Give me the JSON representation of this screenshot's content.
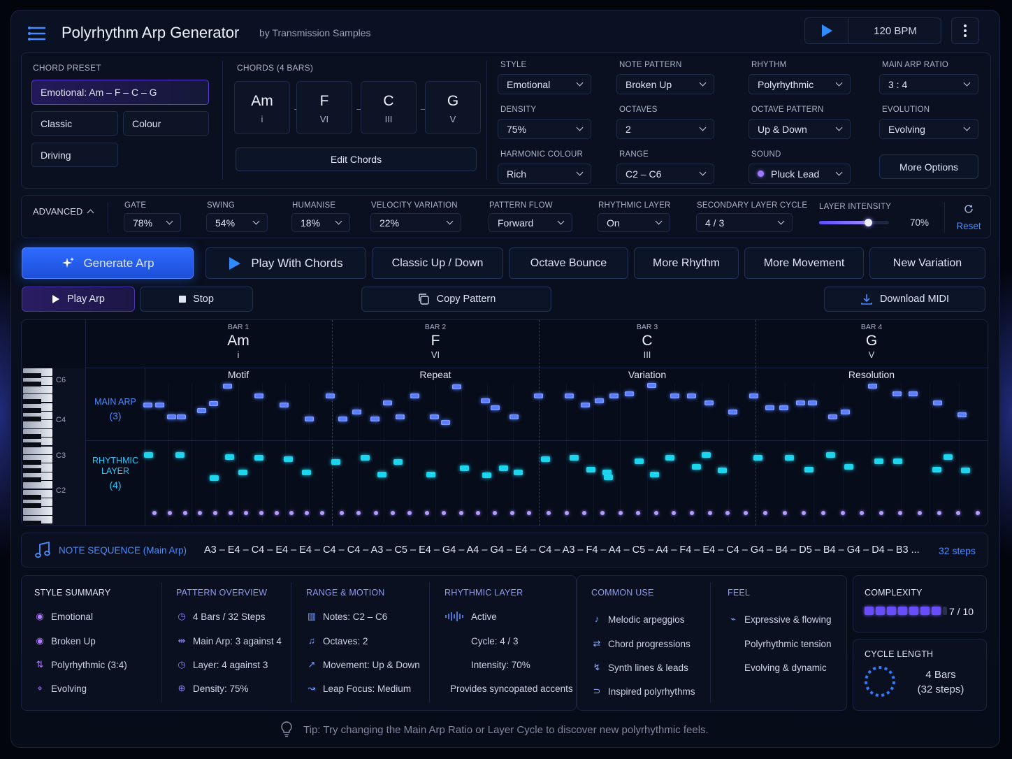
{
  "header": {
    "title": "Polyrhythm Arp Generator",
    "subtitle": "by Transmission Samples",
    "bpm": "120 BPM"
  },
  "chord_preset": {
    "label": "CHORD PRESET",
    "selected": "Emotional: Am – F – C – G",
    "options": [
      "Classic",
      "Colour",
      "Driving"
    ]
  },
  "chords": {
    "label": "CHORDS",
    "label_sub": "(4 BARS)",
    "items": [
      {
        "name": "Am",
        "degree": "i"
      },
      {
        "name": "F",
        "degree": "VI"
      },
      {
        "name": "C",
        "degree": "III"
      },
      {
        "name": "G",
        "degree": "V"
      }
    ],
    "edit_label": "Edit Chords"
  },
  "params": [
    {
      "label": "STYLE",
      "value": "Emotional"
    },
    {
      "label": "NOTE PATTERN",
      "value": "Broken Up"
    },
    {
      "label": "RHYTHM",
      "value": "Polyrhythmic"
    },
    {
      "label": "MAIN ARP RATIO",
      "value": "3 : 4"
    },
    {
      "label": "DENSITY",
      "value": "75%"
    },
    {
      "label": "OCTAVES",
      "value": "2"
    },
    {
      "label": "OCTAVE PATTERN",
      "value": "Up & Down"
    },
    {
      "label": "EVOLUTION",
      "value": "Evolving"
    },
    {
      "label": "HARMONIC COLOUR",
      "value": "Rich"
    },
    {
      "label": "RANGE",
      "value": "C2 – C6"
    },
    {
      "label": "SOUND",
      "value": "Pluck Lead"
    }
  ],
  "more_options": "More Options",
  "advanced": {
    "label": "ADVANCED",
    "controls": [
      {
        "label": "GATE",
        "value": "78%"
      },
      {
        "label": "SWING",
        "value": "54%"
      },
      {
        "label": "HUMANISE",
        "value": "18%"
      },
      {
        "label": "VELOCITY VARIATION",
        "value": "22%"
      },
      {
        "label": "PATTERN FLOW",
        "value": "Forward"
      },
      {
        "label": "RHYTHMIC LAYER",
        "value": "On"
      },
      {
        "label": "SECONDARY LAYER CYCLE",
        "value": "4 / 3"
      }
    ],
    "intensity_label": "LAYER INTENSITY",
    "intensity_value": "70%",
    "intensity_level": 0.7,
    "reset": "Reset"
  },
  "actions": {
    "generate": "Generate Arp",
    "play_chords": "Play With Chords",
    "presets": [
      "Classic Up / Down",
      "Octave Bounce",
      "More Rhythm",
      "More Movement",
      "New Variation"
    ]
  },
  "transport": {
    "play": "Play Arp",
    "stop": "Stop",
    "copy": "Copy Pattern",
    "download": "Download MIDI"
  },
  "roll": {
    "bars": [
      {
        "bar": "BAR 1",
        "chord": "Am",
        "degree": "i",
        "section": "Motif"
      },
      {
        "bar": "BAR 2",
        "chord": "F",
        "degree": "VI",
        "section": "Repeat"
      },
      {
        "bar": "BAR 3",
        "chord": "C",
        "degree": "III",
        "section": "Variation"
      },
      {
        "bar": "BAR 4",
        "chord": "G",
        "degree": "V",
        "section": "Resolution"
      }
    ],
    "keys": [
      "C6",
      "C4",
      "C3",
      "C2"
    ],
    "main_label": "MAIN ARP",
    "main_count": "(3)",
    "layer_label_1": "RHYTHMIC",
    "layer_label_2": "LAYER",
    "layer_count": "(4)"
  },
  "sequence": {
    "label": "NOTE SEQUENCE (Main Arp)",
    "notes": "A3 – E4 – C4 – E4 – E4 – C4 – C4 – A3 – C5 – E4 – G4 – A4 – G4 – E4 – C4 – A3 – F4 – A4 – C5 – A4 – F4 – E4 – C4 – G4 – B4 – D5 – B4 – G4 – D4 – B3 ...",
    "steps": "32 steps"
  },
  "summary": {
    "style": {
      "title": "STYLE SUMMARY",
      "items": [
        "Emotional",
        "Broken Up",
        "Polyrhythmic (3:4)",
        "Evolving"
      ]
    },
    "pattern": {
      "title": "PATTERN OVERVIEW",
      "items": [
        "4 Bars / 32 Steps",
        "Main Arp: 3 against 4",
        "Layer: 4 against 3",
        "Density: 75%"
      ]
    },
    "range": {
      "title": "RANGE & MOTION",
      "items": [
        "Notes: C2 – C6",
        "Octaves: 2",
        "Movement: Up & Down",
        "Leap Focus: Medium"
      ]
    },
    "rhythmic": {
      "title": "RHYTHMIC LAYER",
      "items": [
        "Active",
        "Cycle: 4 / 3",
        "Intensity: 70%",
        "Provides syncopated accents"
      ]
    },
    "common": {
      "title": "COMMON USE",
      "items": [
        "Melodic arpeggios",
        "Chord progressions",
        "Synth lines & leads",
        "Inspired polyrhythms"
      ]
    },
    "feel": {
      "title": "FEEL",
      "items": [
        "Expressive & flowing",
        "Polyrhythmic tension",
        "Evolving & dynamic"
      ]
    }
  },
  "complexity": {
    "title": "COMPLEXITY",
    "value": "7 / 10",
    "level": 7,
    "max": 10
  },
  "cycle": {
    "title": "CYCLE LENGTH",
    "line1": "4 Bars",
    "line2": "(32 steps)"
  },
  "tip": "Tip: Try changing the Main Arp Ratio or Layer Cycle to discover new polyrhythmic feels.",
  "colors": {
    "accent": "#2d6bff",
    "main_note": "#5a7dff",
    "layer_note": "#1fd5ee",
    "purple": "#8e86ff"
  }
}
